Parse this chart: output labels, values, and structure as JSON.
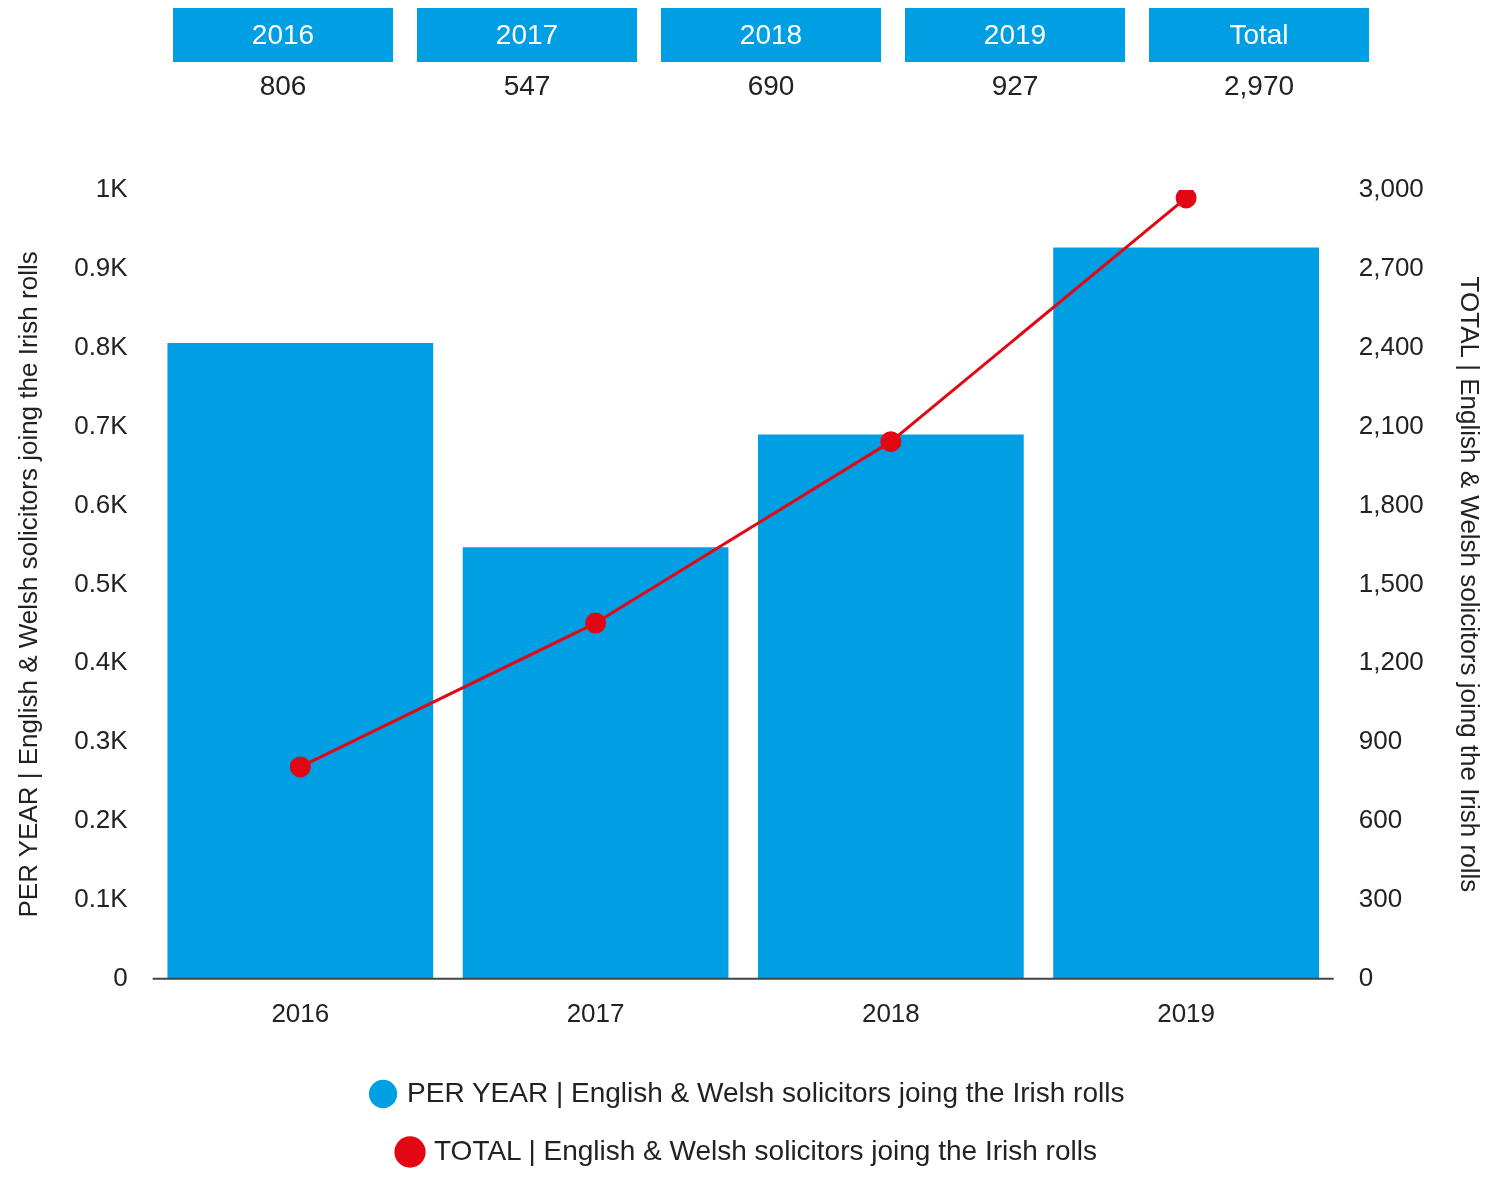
{
  "chart_data": {
    "type": "bar",
    "categories": [
      "2016",
      "2017",
      "2018",
      "2019"
    ],
    "series": [
      {
        "name": "PER YEAR | English & Welsh solicitors joing the Irish rolls",
        "color": "#009fe3",
        "values": [
          806,
          547,
          690,
          927
        ]
      },
      {
        "name": "TOTAL | English & Welsh solicitors joing the Irish rolls",
        "type": "line",
        "axis": "y2",
        "color": "#e30613",
        "values": [
          806,
          1353,
          2043,
          2970
        ]
      }
    ],
    "ylabel": "PER YEAR | English & Welsh solicitors joing the Irish rolls",
    "y2label": "TOTAL | English & Welsh solicitors joing the Irish rolls",
    "ylim": [
      0,
      1000
    ],
    "yticks": [
      0,
      {
        "value": 100,
        "label": "0.1K"
      },
      {
        "value": 200,
        "label": "0.2K"
      },
      {
        "value": 300,
        "label": "0.3K"
      },
      {
        "value": 400,
        "label": "0.4K"
      },
      {
        "value": 500,
        "label": "0.5K"
      },
      {
        "value": 600,
        "label": "0.6K"
      },
      {
        "value": 700,
        "label": "0.7K"
      },
      {
        "value": 800,
        "label": "0.8K"
      },
      {
        "value": 900,
        "label": "0.9K"
      },
      {
        "value": 1000,
        "label": "1K"
      }
    ],
    "y2lim": [
      0,
      3000
    ],
    "y2ticks": [
      0,
      300,
      600,
      900,
      {
        "value": 1200,
        "label": "1,200"
      },
      {
        "value": 1500,
        "label": "1,500"
      },
      {
        "value": 1800,
        "label": "1,800"
      },
      {
        "value": 2100,
        "label": "2,100"
      },
      {
        "value": 2400,
        "label": "2,400"
      },
      {
        "value": 2700,
        "label": "2,700"
      },
      {
        "value": 3000,
        "label": "3,000"
      }
    ],
    "annotations": [
      "2016",
      "2017",
      "2018",
      "2019",
      "Total",
      "806",
      "547",
      "690",
      "927",
      "2,970"
    ],
    "legend": "bottom",
    "marker": "circle",
    "grid": false
  }
}
